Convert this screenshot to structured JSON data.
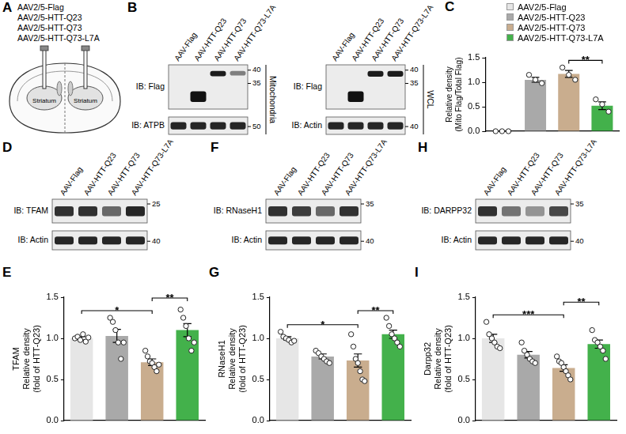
{
  "diagram": {
    "panel": "A",
    "vectors": [
      "AAV2/5-Flag",
      "AAV2/5-HTT-Q23",
      "AAV2/5-HTT-Q73",
      "AAV2/5-HTT-Q73-L7A"
    ],
    "regions": [
      "Striatum",
      "Striatum"
    ]
  },
  "blot_panels": [
    {
      "panel": "B",
      "blots": [
        {
          "lanes": [
            "AAV-Flag",
            "AAV-HTT-Q23",
            "AAV-HTT-Q73",
            "AAV-HTT-Q73-L7A"
          ],
          "side_label": "Mitochondria",
          "rows": [
            {
              "label": "IB: Flag",
              "markers": [
                40,
                35
              ]
            },
            {
              "label": "IB: ATPB",
              "markers": [
                50
              ]
            }
          ]
        },
        {
          "lanes": [
            "AAV-Flag",
            "AAV-HTT-Q23",
            "AAV-HTT-Q73",
            "AAV-HTT-Q73-L7A"
          ],
          "side_label": "WCL",
          "rows": [
            {
              "label": "IB: Flag",
              "markers": [
                40,
                35
              ]
            },
            {
              "label": "IB: Actin",
              "markers": [
                40
              ]
            }
          ]
        }
      ]
    },
    {
      "panel": "D",
      "blots": [
        {
          "lanes": [
            "AAV-Flag",
            "AAV-HTT-Q23",
            "AAV-HTT-Q73",
            "AAV-HTT-Q73-L7A"
          ],
          "rows": [
            {
              "label": "IB: TFAM",
              "markers": [
                25
              ]
            },
            {
              "label": "IB: Actin",
              "markers": [
                40
              ]
            }
          ]
        }
      ]
    },
    {
      "panel": "F",
      "blots": [
        {
          "lanes": [
            "AAV-Flag",
            "AAV-HTT-Q23",
            "AAV-HTT-Q73",
            "AAV-HTT-Q73-L7A"
          ],
          "rows": [
            {
              "label": "IB: RNaseH1",
              "markers": [
                35
              ]
            },
            {
              "label": "IB: Actin",
              "markers": [
                40
              ]
            }
          ]
        }
      ]
    },
    {
      "panel": "H",
      "blots": [
        {
          "lanes": [
            "AAV-Flag",
            "AAV-HTT-Q23",
            "AAV-HTT-Q73",
            "AAV-HTT-Q73-L7A"
          ],
          "rows": [
            {
              "label": "IB: DARPP32",
              "markers": [
                35
              ]
            },
            {
              "label": "IB: Actin",
              "markers": [
                40
              ]
            }
          ]
        }
      ]
    }
  ],
  "chart_data": [
    {
      "panel": "C",
      "type": "bar",
      "categories": [
        "AAV2/5-Flag",
        "AAV2/5-HTT-Q23",
        "AAV2/5-HTT-Q73",
        "AAV2/5-HTT-Q73-L7A"
      ],
      "values": [
        0,
        1.05,
        1.17,
        0.52
      ],
      "errors": [
        0,
        0.05,
        0.07,
        0.08
      ],
      "points": [
        [
          0,
          0,
          0
        ],
        [
          1.15,
          1.05,
          0.98
        ],
        [
          1.3,
          1.15,
          1.05
        ],
        [
          0.65,
          0.55,
          0.4
        ]
      ],
      "colors": [
        "#e6e6e6",
        "#a9a9a9",
        "#c9ad8e",
        "#43b14b"
      ],
      "y_label": [
        "Relative density",
        "(Mito Flag/Total Flag)"
      ],
      "ylim": [
        0,
        1.5
      ],
      "yticks": [
        {
          "value": 0,
          "label": "0.0"
        },
        {
          "value": 0.5,
          "label": "0.5"
        },
        {
          "value": 1,
          "label": "1.0"
        },
        {
          "value": 1.5,
          "label": "1.5"
        }
      ],
      "grid": false,
      "legend": "top",
      "tick_labels": "y",
      "significance": [
        {
          "from": "AAV2/5-HTT-Q73",
          "to": "AAV2/5-HTT-Q73-L7A",
          "label": "**"
        }
      ]
    },
    {
      "panel": "E",
      "type": "bar",
      "categories": [
        "AAV2/5-Flag",
        "AAV2/5-HTT-Q23",
        "AAV2/5-HTT-Q73",
        "AAV2/5-HTT-Q73-L7A"
      ],
      "values": [
        1.0,
        1.03,
        0.71,
        1.1
      ],
      "errors": [
        0.02,
        0.08,
        0.04,
        0.08
      ],
      "points": [
        [
          1.0,
          1.02,
          0.98,
          1.05,
          0.96,
          1.01
        ],
        [
          1.25,
          1.2,
          1.1,
          0.95,
          0.75,
          0.95
        ],
        [
          0.85,
          0.78,
          0.72,
          0.7,
          0.65,
          0.6,
          0.68
        ],
        [
          1.35,
          1.25,
          1.15,
          1.0,
          0.85,
          0.95
        ]
      ],
      "colors": [
        "#e6e6e6",
        "#a9a9a9",
        "#c9ad8e",
        "#43b14b"
      ],
      "y_label": [
        "TFAM",
        "Relative density",
        "(fold of HTT-Q23)"
      ],
      "ylim": [
        0,
        1.5
      ],
      "yticks": [
        {
          "value": 0,
          "label": "0.0"
        },
        {
          "value": 0.5,
          "label": "0.5"
        },
        {
          "value": 1,
          "label": "1.0"
        },
        {
          "value": 1.5,
          "label": "1.5"
        }
      ],
      "grid": false,
      "tick_labels": "y",
      "significance": [
        {
          "from": "AAV2/5-Flag",
          "to": "AAV2/5-HTT-Q73",
          "label": "*"
        },
        {
          "from": "AAV2/5-HTT-Q73",
          "to": "AAV2/5-HTT-Q73-L7A",
          "label": "**"
        }
      ]
    },
    {
      "panel": "G",
      "type": "bar",
      "categories": [
        "AAV2/5-Flag",
        "AAV2/5-HTT-Q23",
        "AAV2/5-HTT-Q73",
        "AAV2/5-HTT-Q73-L7A"
      ],
      "values": [
        1.0,
        0.78,
        0.73,
        1.05
      ],
      "errors": [
        0.02,
        0.03,
        0.08,
        0.05
      ],
      "points": [
        [
          1.08,
          1.02,
          1.0,
          0.98,
          0.95,
          0.97
        ],
        [
          0.85,
          0.82,
          0.78,
          0.75,
          0.72,
          0.7
        ],
        [
          1.05,
          0.9,
          0.75,
          0.7,
          0.6,
          0.5,
          0.48
        ],
        [
          1.25,
          1.15,
          1.05,
          1.0,
          0.95,
          0.9
        ]
      ],
      "colors": [
        "#e6e6e6",
        "#a9a9a9",
        "#c9ad8e",
        "#43b14b"
      ],
      "y_label": [
        "RNaseH1",
        "Relative density",
        "(fold of HTT-Q23)"
      ],
      "ylim": [
        0,
        1.5
      ],
      "yticks": [
        {
          "value": 0,
          "label": "0.0"
        },
        {
          "value": 0.5,
          "label": "0.5"
        },
        {
          "value": 1,
          "label": "1.0"
        },
        {
          "value": 1.5,
          "label": "1.5"
        }
      ],
      "grid": false,
      "tick_labels": "y",
      "significance": [
        {
          "from": "AAV2/5-Flag",
          "to": "AAV2/5-HTT-Q73",
          "label": "*"
        },
        {
          "from": "AAV2/5-HTT-Q73",
          "to": "AAV2/5-HTT-Q73-L7A",
          "label": "**"
        }
      ]
    },
    {
      "panel": "I",
      "type": "bar",
      "categories": [
        "AAV2/5-Flag",
        "AAV2/5-HTT-Q23",
        "AAV2/5-HTT-Q73",
        "AAV2/5-HTT-Q73-L7A"
      ],
      "values": [
        1.0,
        0.8,
        0.64,
        0.93
      ],
      "errors": [
        0.05,
        0.04,
        0.04,
        0.05
      ],
      "points": [
        [
          1.2,
          1.05,
          1.0,
          0.95,
          0.9,
          0.88
        ],
        [
          0.95,
          0.85,
          0.8,
          0.75,
          0.72,
          0.7
        ],
        [
          0.78,
          0.72,
          0.7,
          0.65,
          0.6,
          0.55,
          0.5
        ],
        [
          1.1,
          0.98,
          0.95,
          0.9,
          0.85,
          0.75
        ]
      ],
      "colors": [
        "#e6e6e6",
        "#a9a9a9",
        "#c9ad8e",
        "#43b14b"
      ],
      "y_label": [
        "Darpp32",
        "Relative density",
        "(fold of HTT-Q23)"
      ],
      "ylim": [
        0,
        1.5
      ],
      "yticks": [
        {
          "value": 0,
          "label": "0.0"
        },
        {
          "value": 0.5,
          "label": "0.5"
        },
        {
          "value": 1,
          "label": "1.0"
        },
        {
          "value": 1.5,
          "label": "1.5"
        }
      ],
      "grid": false,
      "tick_labels": "y",
      "significance": [
        {
          "from": "AAV2/5-Flag",
          "to": "AAV2/5-HTT-Q73",
          "label": "***"
        },
        {
          "from": "AAV2/5-HTT-Q73",
          "to": "AAV2/5-HTT-Q73-L7A",
          "label": "**"
        }
      ]
    }
  ]
}
